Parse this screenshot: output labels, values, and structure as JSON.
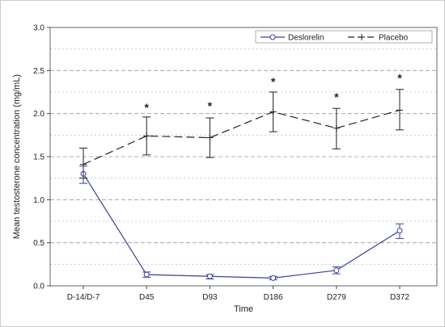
{
  "chart_data": {
    "type": "line",
    "title": "",
    "xlabel": "Time",
    "ylabel": "Mean testosterone concentration (mg/mL)",
    "categories": [
      "D-14/D-7",
      "D45",
      "D93",
      "D186",
      "D279",
      "D372"
    ],
    "ylim": [
      0.0,
      3.0
    ],
    "yticks": [
      "0.0",
      "0.5",
      "1.0",
      "1.5",
      "2.0",
      "2.5",
      "3.0"
    ],
    "grid": true,
    "legend_position": "top-right",
    "series": [
      {
        "name": "Deslorelin",
        "values": [
          1.3,
          0.13,
          0.11,
          0.09,
          0.18,
          0.64
        ],
        "error_low": [
          1.19,
          0.1,
          0.08,
          0.07,
          0.14,
          0.55
        ],
        "error_high": [
          1.39,
          0.16,
          0.13,
          0.11,
          0.22,
          0.72
        ],
        "color": "#3b3f9a",
        "line_style": "solid",
        "marker": "circle"
      },
      {
        "name": "Placebo",
        "values": [
          1.41,
          1.74,
          1.72,
          2.02,
          1.83,
          2.04
        ],
        "error_low": [
          1.25,
          1.52,
          1.49,
          1.79,
          1.59,
          1.81
        ],
        "error_high": [
          1.6,
          1.96,
          1.95,
          2.25,
          2.06,
          2.28
        ],
        "color": "#222222",
        "line_style": "dashed",
        "marker": "plus"
      }
    ],
    "annotations": [
      {
        "category": "D45",
        "text": "*",
        "y": 2.1
      },
      {
        "category": "D93",
        "text": "*",
        "y": 2.12
      },
      {
        "category": "D186",
        "text": "*",
        "y": 2.4
      },
      {
        "category": "D279",
        "text": "*",
        "y": 2.22
      },
      {
        "category": "D372",
        "text": "*",
        "y": 2.44
      }
    ]
  }
}
